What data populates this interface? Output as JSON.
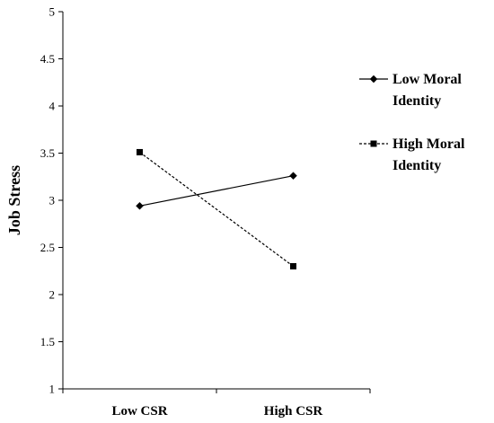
{
  "chart_data": {
    "type": "line",
    "title": "",
    "xlabel": "",
    "ylabel": "Job Stress",
    "categories": [
      "Low CSR",
      "High CSR"
    ],
    "ylim": [
      1,
      5
    ],
    "yticks": [
      "1",
      "1.5",
      "2",
      "2.5",
      "3",
      "3.5",
      "4",
      "4.5",
      "5"
    ],
    "grid": false,
    "legend_position": "right",
    "series": [
      {
        "name_lines": [
          "Low Moral",
          "Identity"
        ],
        "values": [
          2.94,
          3.26
        ],
        "marker": "diamond",
        "line_style": "solid",
        "color": "#000000"
      },
      {
        "name_lines": [
          "High Moral",
          "Identity"
        ],
        "values": [
          3.51,
          2.3
        ],
        "marker": "square",
        "line_style": "dashed",
        "color": "#000000"
      }
    ]
  }
}
